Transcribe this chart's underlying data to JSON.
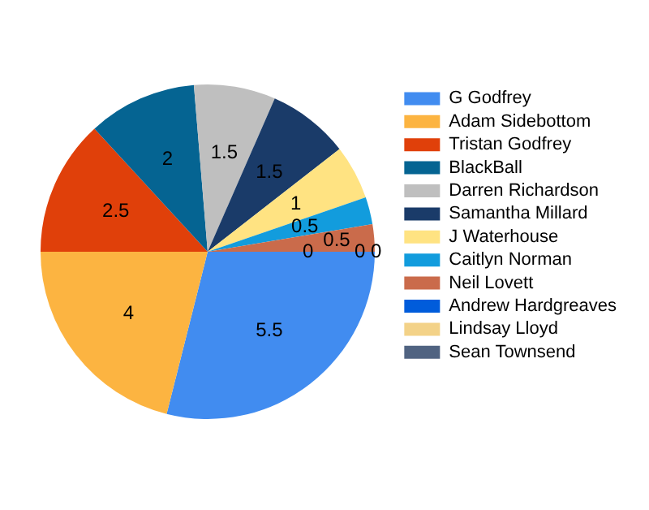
{
  "chart_data": {
    "type": "pie",
    "categories": [
      "G Godfrey",
      "Adam Sidebottom",
      "Tristan Godfrey",
      "BlackBall",
      "Darren Richardson",
      "Samantha Millard",
      "J Waterhouse",
      "Caitlyn Norman",
      "Neil Lovett",
      "Andrew Hardgreaves",
      "Lindsay Lloyd",
      "Sean Townsend"
    ],
    "values": [
      5.5,
      4,
      2.5,
      2,
      1.5,
      1.5,
      1,
      0.5,
      0.5,
      0,
      0,
      0
    ],
    "colors": [
      "#418cf0",
      "#fcb441",
      "#e0400a",
      "#056492",
      "#bfbfbf",
      "#1a3b69",
      "#ffe382",
      "#129cdd",
      "#ca6b4b",
      "#005cdb",
      "#f3d288",
      "#506381"
    ],
    "value_labels": [
      "5.5",
      "4",
      "2.5",
      "2",
      "1.5",
      "1.5",
      "1",
      "0.5",
      "0.5",
      "0",
      "0",
      "0"
    ],
    "legend": "top right"
  }
}
